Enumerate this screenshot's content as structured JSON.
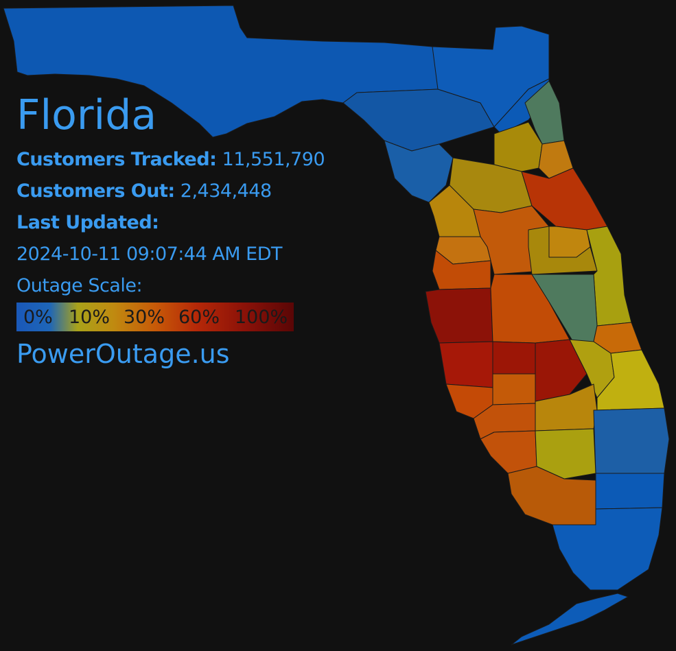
{
  "state": "Florida",
  "stats": {
    "tracked_label": "Customers Tracked:",
    "tracked_value": "11,551,790",
    "out_label": "Customers Out:",
    "out_value": "2,434,448",
    "updated_label": "Last Updated:",
    "updated_value": "2024-10-11 09:07:44 AM EDT"
  },
  "scale": {
    "title": "Outage Scale:",
    "stops": [
      "0%",
      "10%",
      "30%",
      "60%",
      "100%"
    ]
  },
  "site": "PowerOutage.us",
  "colors": {
    "background": "#111111",
    "text": "#3a9bf0",
    "outage_0": "#1a5cb8",
    "outage_low": "#1e66a8",
    "outage_teal": "#4f7a5e",
    "outage_10": "#a8a010",
    "outage_30": "#c07a10",
    "outage_45": "#c25408",
    "outage_60": "#b03008",
    "outage_100": "#8c1208"
  }
}
